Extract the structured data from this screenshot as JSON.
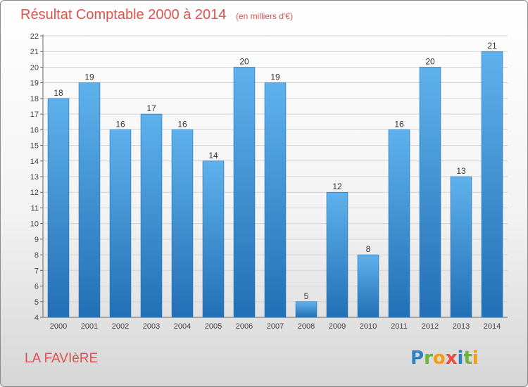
{
  "chart_data": {
    "type": "bar",
    "title": "Résultat Comptable 2000 à 2014",
    "subtitle": "(en milliers d'€)",
    "categories": [
      "2000",
      "2001",
      "2002",
      "2003",
      "2004",
      "2005",
      "2006",
      "2007",
      "2008",
      "2009",
      "2010",
      "2011",
      "2012",
      "2013",
      "2014"
    ],
    "values": [
      18,
      19,
      16,
      17,
      16,
      14,
      20,
      19,
      5,
      12,
      8,
      16,
      20,
      13,
      21
    ],
    "xlabel": "",
    "ylabel": "",
    "ylim": [
      4,
      22
    ],
    "yticks": [
      4,
      5,
      6,
      7,
      8,
      9,
      10,
      11,
      12,
      13,
      14,
      15,
      16,
      17,
      18,
      19,
      20,
      21,
      22
    ],
    "grid": true,
    "bar_color": "#3d8fd6",
    "bar_color_light": "#5fb1ec",
    "bar_color_dark": "#2270b5"
  },
  "footer": {
    "commune": "LA FAVIèRE",
    "commune_color": "#d9534f",
    "logo_letters": [
      "P",
      "r",
      "o",
      "x",
      "i",
      "t",
      "i"
    ],
    "logo_colors": [
      "#2f7fc1",
      "#6cb33f",
      "#f39c12",
      "#e74c3c",
      "#2f7fc1",
      "#6cb33f",
      "#f39c12"
    ]
  }
}
